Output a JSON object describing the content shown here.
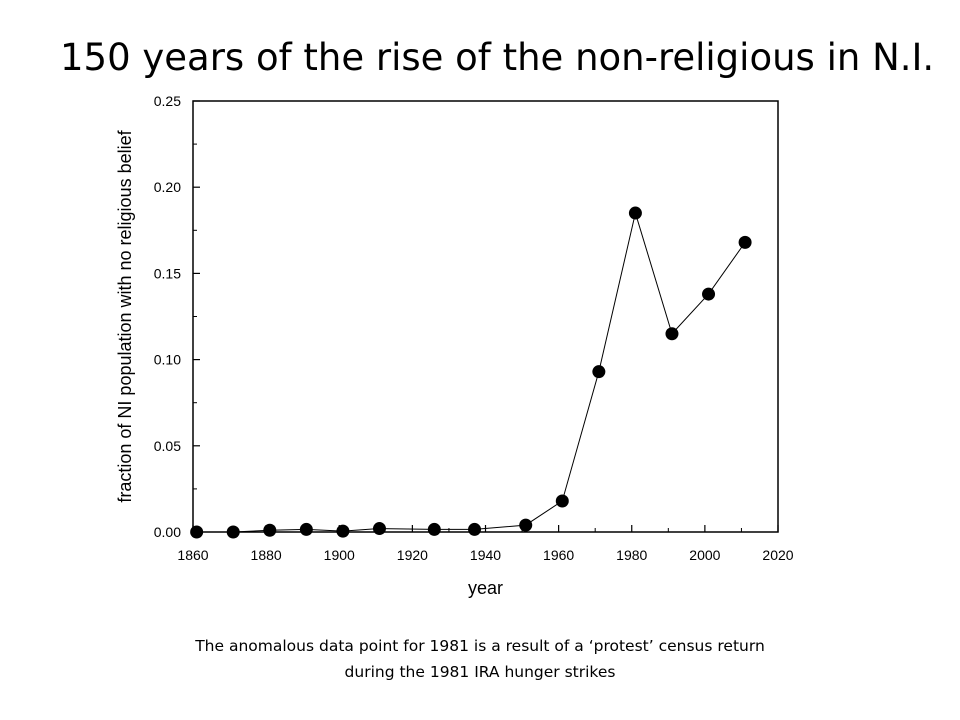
{
  "slide": {
    "title": "150 years of the rise of the non-religious in N.I.",
    "caption_line1": "The anomalous data point for 1981 is a result of a ‘protest’ census return",
    "caption_line2": "during the 1981 IRA hunger strikes"
  },
  "chart_data": {
    "type": "line",
    "title": "",
    "xlabel": "year",
    "ylabel": "fraction of NI population with no religious belief",
    "xlim": [
      1860,
      2020
    ],
    "ylim": [
      0.0,
      0.25
    ],
    "xticks": [
      1860,
      1880,
      1900,
      1920,
      1940,
      1960,
      1980,
      2000,
      2020
    ],
    "yticks": [
      "0.00",
      "0.05",
      "0.10",
      "0.15",
      "0.20",
      "0.25"
    ],
    "grid": false,
    "legend": "none",
    "marker": "filled-circle",
    "colors": {
      "line": "#000000",
      "marker": "#000000",
      "axes": "#000000"
    },
    "series": [
      {
        "x": [
          1861,
          1871,
          1881,
          1891,
          1901,
          1911,
          1926,
          1937,
          1951,
          1961,
          1971,
          1981,
          1991,
          2001,
          2011
        ],
        "y": [
          0.0,
          0.0,
          0.001,
          0.0015,
          0.0005,
          0.002,
          0.0015,
          0.0015,
          0.004,
          0.018,
          0.093,
          0.185,
          0.115,
          0.138,
          0.168
        ]
      }
    ]
  }
}
